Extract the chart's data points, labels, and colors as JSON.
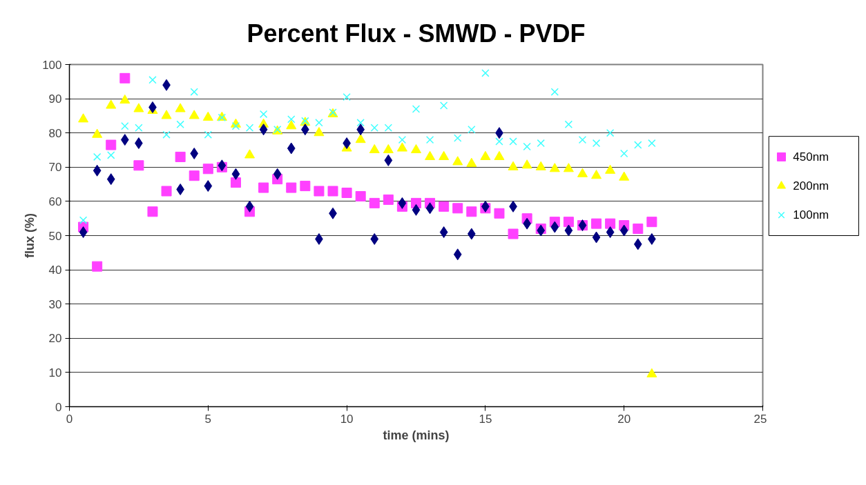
{
  "chart_data": {
    "type": "scatter",
    "title": "Percent Flux - SMWD - PVDF",
    "xlabel": "time (mins)",
    "ylabel": "flux (%)",
    "x": [
      0.5,
      1,
      1.5,
      2,
      2.5,
      3,
      3.5,
      4,
      4.5,
      5,
      5.5,
      6,
      6.5,
      7,
      7.5,
      8,
      8.5,
      9,
      9.5,
      10,
      10.5,
      11,
      11.5,
      12,
      12.5,
      13,
      13.5,
      14,
      14.5,
      15,
      15.5,
      16,
      16.5,
      17,
      17.5,
      18,
      18.5,
      19,
      19.5,
      20,
      20.5,
      21
    ],
    "xlim": [
      0,
      25
    ],
    "xticks": [
      0,
      5,
      10,
      15,
      20,
      25
    ],
    "ylim": [
      0,
      100
    ],
    "yticks": [
      0,
      10,
      20,
      30,
      40,
      50,
      60,
      70,
      80,
      90,
      100
    ],
    "grid": "y",
    "legend": "right",
    "series": [
      {
        "name": "450nm",
        "color": "#ff40ff",
        "marker": "square",
        "values": [
          52.5,
          41,
          76.5,
          96,
          70.5,
          57,
          63,
          73,
          67.5,
          69.5,
          70,
          65.5,
          57,
          64,
          66.5,
          64,
          64.5,
          63,
          63,
          62.5,
          61.5,
          59.5,
          60.5,
          58.5,
          59.5,
          59.5,
          58.5,
          58,
          57,
          58,
          56.5,
          50.5,
          55,
          52,
          54,
          54,
          53,
          53.5,
          53.5,
          53,
          52,
          54
        ]
      },
      {
        "name": "200nm",
        "color": "#ffff00",
        "marker": "triangle",
        "values": [
          84,
          79.5,
          88,
          89.5,
          87,
          86.5,
          85,
          87,
          85,
          84.5,
          84.5,
          82.5,
          73.5,
          82.5,
          80.5,
          82,
          83,
          80,
          85.5,
          75.5,
          78,
          75,
          75,
          75.5,
          75,
          73,
          73,
          71.5,
          71,
          73,
          73,
          70,
          70.5,
          70,
          69.5,
          69.5,
          68,
          67.5,
          69,
          67,
          null,
          9.5
        ]
      },
      {
        "name": "100nm",
        "color": "#40ffff",
        "marker": "cross",
        "values": [
          54.5,
          73,
          73.5,
          82,
          81.5,
          95.5,
          79.5,
          82.5,
          92,
          79.5,
          84.5,
          82,
          81.5,
          85.5,
          81,
          84,
          83.5,
          83,
          86,
          90.5,
          83,
          81.5,
          81.5,
          78,
          87,
          78,
          88,
          78.5,
          81,
          97.5,
          77.5,
          77.5,
          76,
          77,
          92,
          82.5,
          78,
          77,
          80,
          74,
          76.5,
          77
        ]
      },
      {
        "color": "#000080",
        "marker": "diamond",
        "values": [
          51,
          69,
          66.5,
          78,
          77,
          87.5,
          94,
          63.5,
          74,
          64.5,
          70.5,
          68,
          58.5,
          81,
          68,
          75.5,
          81,
          49,
          56.5,
          77,
          81,
          49,
          72,
          59.5,
          57.5,
          58,
          51,
          44.5,
          50.5,
          58.5,
          80,
          58.5,
          53.5,
          51.5,
          52.5,
          51.5,
          53,
          49.5,
          51,
          51.5,
          47.5,
          49
        ]
      }
    ]
  }
}
